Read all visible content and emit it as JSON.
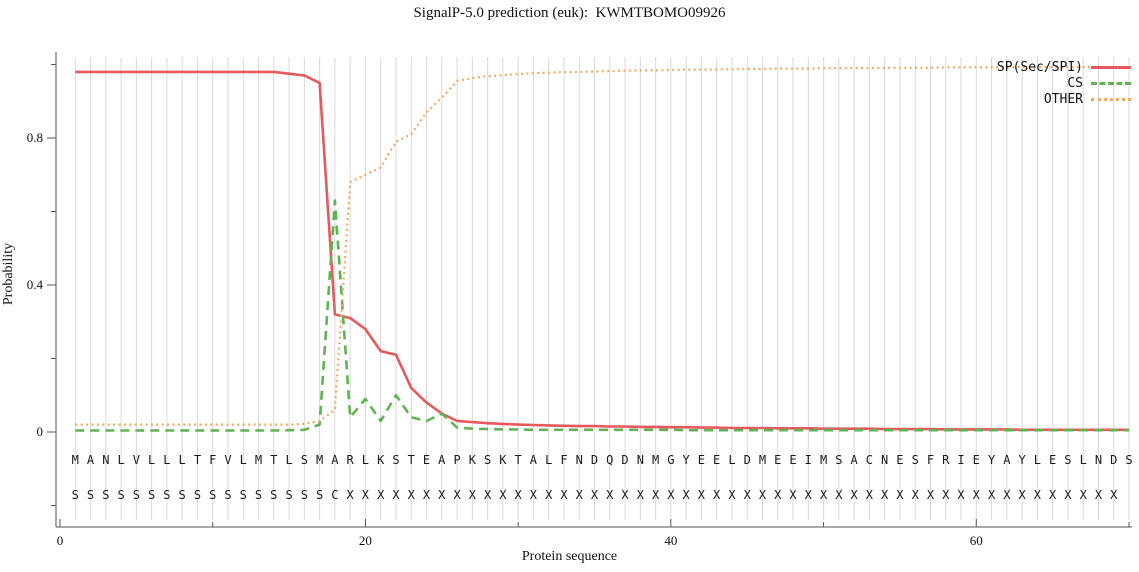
{
  "title": "SignalP-5.0 prediction (euk):  KWMTBOMO09926",
  "chart_data": {
    "type": "line",
    "title": "SignalP-5.0 prediction (euk):  KWMTBOMO09926",
    "xlabel": "Protein sequence",
    "ylabel": "Probability",
    "xlim": [
      0,
      70.5
    ],
    "ylim": [
      -0.35,
      1.04
    ],
    "x_ticks_major": [
      0,
      20,
      40,
      60
    ],
    "x_ticks_minor": [
      10,
      30,
      50,
      70
    ],
    "y_ticks_major": [
      0,
      0.4,
      0.8
    ],
    "y_ticks_minor": [
      -0.2,
      0.2,
      0.6,
      1.0
    ],
    "grid": "vertical line at every residue position",
    "legend_position": "top-right",
    "x": "residue positions 1..70",
    "sequence": "MANLVLLLTFVLMTLSMARLKSTEAPKSKTALFNDQDNMGYEELDMEEIMSACNESFRIEYAYLESLNDS",
    "annotation": "SSSSSSSSSSSSSSSSSCXXXXXXXXXXXXXXXXXXXXXXXXXXXXXXXXXXXXXXXXXXXXXXXXXXX",
    "series": [
      {
        "name": "SP(Sec/SPI)",
        "color": "#e7595c",
        "style": "solid",
        "values": [
          0.98,
          0.98,
          0.98,
          0.98,
          0.98,
          0.98,
          0.98,
          0.98,
          0.98,
          0.98,
          0.98,
          0.98,
          0.98,
          0.98,
          0.975,
          0.97,
          0.95,
          0.32,
          0.31,
          0.28,
          0.22,
          0.21,
          0.12,
          0.08,
          0.05,
          0.03,
          0.027,
          0.024,
          0.022,
          0.02,
          0.019,
          0.018,
          0.017,
          0.016,
          0.016,
          0.015,
          0.015,
          0.014,
          0.014,
          0.013,
          0.013,
          0.012,
          0.012,
          0.011,
          0.011,
          0.011,
          0.01,
          0.01,
          0.01,
          0.009,
          0.009,
          0.009,
          0.009,
          0.008,
          0.008,
          0.008,
          0.008,
          0.007,
          0.007,
          0.007,
          0.007,
          0.007,
          0.006,
          0.006,
          0.006,
          0.006,
          0.006,
          0.006,
          0.006,
          0.006
        ]
      },
      {
        "name": "CS",
        "color": "#5fb352",
        "style": "dashed",
        "values": [
          0.004,
          0.004,
          0.004,
          0.004,
          0.004,
          0.004,
          0.004,
          0.004,
          0.004,
          0.004,
          0.004,
          0.004,
          0.004,
          0.004,
          0.005,
          0.006,
          0.02,
          0.63,
          0.04,
          0.09,
          0.03,
          0.1,
          0.04,
          0.03,
          0.05,
          0.012,
          0.009,
          0.008,
          0.007,
          0.007,
          0.006,
          0.006,
          0.006,
          0.006,
          0.006,
          0.006,
          0.006,
          0.006,
          0.006,
          0.006,
          0.005,
          0.005,
          0.005,
          0.005,
          0.005,
          0.005,
          0.005,
          0.005,
          0.005,
          0.005,
          0.005,
          0.005,
          0.005,
          0.005,
          0.005,
          0.005,
          0.005,
          0.005,
          0.005,
          0.005,
          0.005,
          0.005,
          0.005,
          0.005,
          0.005,
          0.005,
          0.005,
          0.005,
          0.005,
          0.005
        ]
      },
      {
        "name": "OTHER",
        "color": "#f3a963",
        "style": "dotted",
        "values": [
          0.02,
          0.02,
          0.02,
          0.02,
          0.02,
          0.02,
          0.02,
          0.02,
          0.02,
          0.02,
          0.02,
          0.02,
          0.02,
          0.02,
          0.02,
          0.022,
          0.03,
          0.06,
          0.68,
          0.7,
          0.72,
          0.79,
          0.81,
          0.87,
          0.91,
          0.955,
          0.963,
          0.968,
          0.971,
          0.974,
          0.976,
          0.978,
          0.979,
          0.98,
          0.981,
          0.982,
          0.983,
          0.984,
          0.984,
          0.985,
          0.986,
          0.986,
          0.987,
          0.987,
          0.988,
          0.988,
          0.989,
          0.989,
          0.989,
          0.99,
          0.99,
          0.99,
          0.99,
          0.991,
          0.991,
          0.991,
          0.991,
          0.992,
          0.992,
          0.992,
          0.992,
          0.992,
          0.993,
          0.993,
          0.993,
          0.993,
          0.993,
          0.993,
          0.993,
          0.993
        ]
      }
    ]
  }
}
